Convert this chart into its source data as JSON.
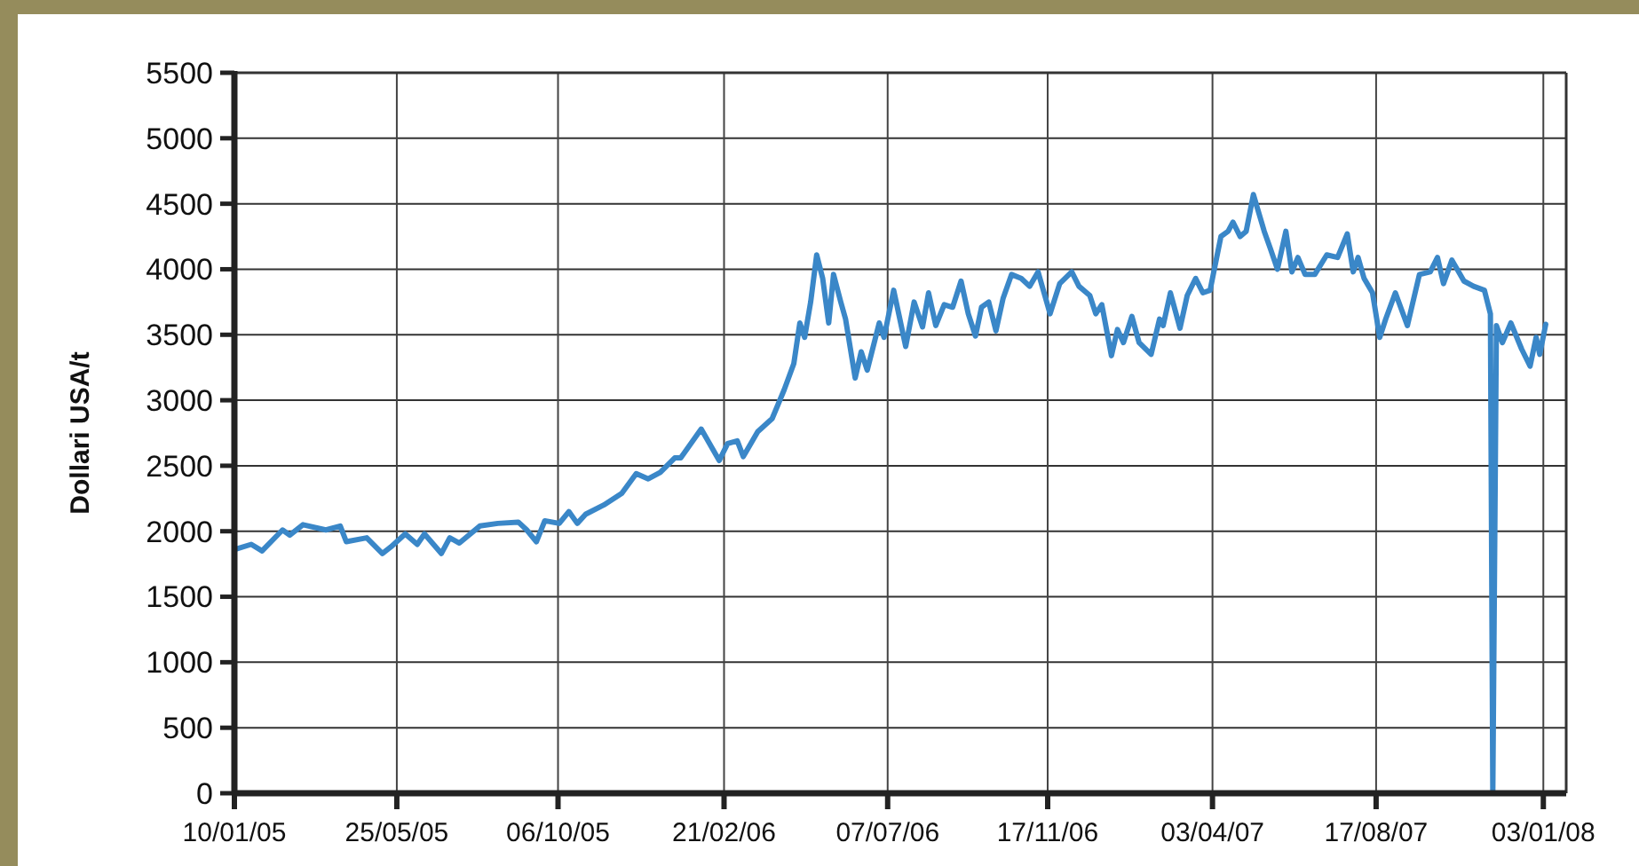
{
  "chart_data": {
    "type": "line",
    "ylabel": "Dollari USA/t",
    "xlim": [
      "2005-01-10",
      "2008-01-22"
    ],
    "xticks": [
      {
        "value": "2005-01-10",
        "label": "10/01/05"
      },
      {
        "value": "2005-05-25",
        "label": "25/05/05"
      },
      {
        "value": "2005-10-06",
        "label": "06/10/05"
      },
      {
        "value": "2006-02-21",
        "label": "21/02/06"
      },
      {
        "value": "2006-07-07",
        "label": "07/07/06"
      },
      {
        "value": "2006-11-17",
        "label": "17/11/06"
      },
      {
        "value": "2007-04-03",
        "label": "03/04/07"
      },
      {
        "value": "2007-08-17",
        "label": "17/08/07"
      },
      {
        "value": "2008-01-03",
        "label": "03/01/08"
      }
    ],
    "ylim": [
      0,
      5500
    ],
    "yticks": [
      0,
      500,
      1000,
      1500,
      2000,
      2500,
      3000,
      3500,
      4000,
      4500,
      5000,
      5500
    ],
    "grid": true,
    "marker": "none",
    "line_style": "solid",
    "series": [
      {
        "color": "#3a87c8",
        "x": [
          "2005-01-10",
          "2005-01-24",
          "2005-02-02",
          "2005-02-19",
          "2005-02-25",
          "2005-03-08",
          "2005-03-27",
          "2005-04-08",
          "2005-04-13",
          "2005-04-30",
          "2005-05-13",
          "2005-05-20",
          "2005-06-01",
          "2005-06-11",
          "2005-06-17",
          "2005-07-01",
          "2005-07-08",
          "2005-07-16",
          "2005-08-02",
          "2005-08-17",
          "2005-09-03",
          "2005-09-10",
          "2005-09-18",
          "2005-09-25",
          "2005-10-07",
          "2005-10-15",
          "2005-10-22",
          "2005-10-29",
          "2005-11-13",
          "2005-11-28",
          "2005-12-10",
          "2005-12-20",
          "2005-12-30",
          "2006-01-11",
          "2006-01-16",
          "2006-02-02",
          "2006-02-17",
          "2006-02-24",
          "2006-03-04",
          "2006-03-09",
          "2006-03-21",
          "2006-04-02",
          "2006-04-12",
          "2006-04-20",
          "2006-04-25",
          "2006-04-29",
          "2006-05-04",
          "2006-05-09",
          "2006-05-14",
          "2006-05-19",
          "2006-05-23",
          "2006-05-29",
          "2006-06-02",
          "2006-06-10",
          "2006-06-15",
          "2006-06-20",
          "2006-06-30",
          "2006-07-04",
          "2006-07-12",
          "2006-07-22",
          "2006-07-29",
          "2006-08-05",
          "2006-08-10",
          "2006-08-16",
          "2006-08-23",
          "2006-08-30",
          "2006-09-06",
          "2006-09-12",
          "2006-09-18",
          "2006-09-23",
          "2006-09-29",
          "2006-10-05",
          "2006-10-11",
          "2006-10-18",
          "2006-10-26",
          "2006-11-02",
          "2006-11-09",
          "2006-11-19",
          "2006-11-27",
          "2006-12-07",
          "2006-12-13",
          "2006-12-22",
          "2006-12-27",
          "2007-01-01",
          "2007-01-09",
          "2007-01-14",
          "2007-01-19",
          "2007-01-26",
          "2007-02-01",
          "2007-02-11",
          "2007-02-18",
          "2007-02-21",
          "2007-02-27",
          "2007-03-07",
          "2007-03-13",
          "2007-03-20",
          "2007-03-26",
          "2007-04-01",
          "2007-04-10",
          "2007-04-16",
          "2007-04-20",
          "2007-04-26",
          "2007-05-01",
          "2007-05-07",
          "2007-05-16",
          "2007-05-21",
          "2007-05-27",
          "2007-06-03",
          "2007-06-08",
          "2007-06-13",
          "2007-06-19",
          "2007-06-27",
          "2007-07-07",
          "2007-07-16",
          "2007-07-24",
          "2007-07-29",
          "2007-08-02",
          "2007-08-07",
          "2007-08-14",
          "2007-08-20",
          "2007-08-25",
          "2007-09-02",
          "2007-09-12",
          "2007-09-22",
          "2007-10-01",
          "2007-10-07",
          "2007-10-12",
          "2007-10-19",
          "2007-10-29",
          "2007-11-06",
          "2007-11-15",
          "2007-11-20",
          "2007-11-22",
          "2007-11-25",
          "2007-11-30",
          "2007-12-07",
          "2007-12-16",
          "2007-12-23",
          "2007-12-28",
          "2007-12-31",
          "2008-01-05"
        ],
        "values": [
          1860,
          1900,
          1850,
          2010,
          1970,
          2050,
          2010,
          2040,
          1920,
          1950,
          1830,
          1880,
          1980,
          1900,
          1980,
          1830,
          1950,
          1910,
          2040,
          2060,
          2070,
          2010,
          1920,
          2080,
          2060,
          2150,
          2060,
          2130,
          2200,
          2290,
          2440,
          2400,
          2450,
          2560,
          2560,
          2780,
          2540,
          2670,
          2690,
          2570,
          2760,
          2860,
          3080,
          3280,
          3590,
          3480,
          3750,
          4110,
          3930,
          3590,
          3960,
          3750,
          3620,
          3170,
          3370,
          3230,
          3590,
          3480,
          3840,
          3410,
          3750,
          3560,
          3820,
          3570,
          3730,
          3710,
          3910,
          3660,
          3490,
          3710,
          3750,
          3530,
          3780,
          3960,
          3930,
          3870,
          3980,
          3660,
          3890,
          3980,
          3870,
          3800,
          3660,
          3730,
          3340,
          3540,
          3440,
          3640,
          3440,
          3350,
          3620,
          3570,
          3820,
          3550,
          3800,
          3930,
          3820,
          3840,
          4250,
          4290,
          4360,
          4250,
          4290,
          4570,
          4290,
          4160,
          4000,
          4290,
          3980,
          4090,
          3960,
          3960,
          4110,
          4090,
          4270,
          3980,
          4090,
          3930,
          3820,
          3480,
          3620,
          3820,
          3570,
          3960,
          3980,
          4090,
          3890,
          4070,
          3910,
          3870,
          3840,
          3660,
          0,
          3570,
          3440,
          3590,
          3390,
          3260,
          3480,
          3350,
          3580
        ]
      }
    ]
  }
}
